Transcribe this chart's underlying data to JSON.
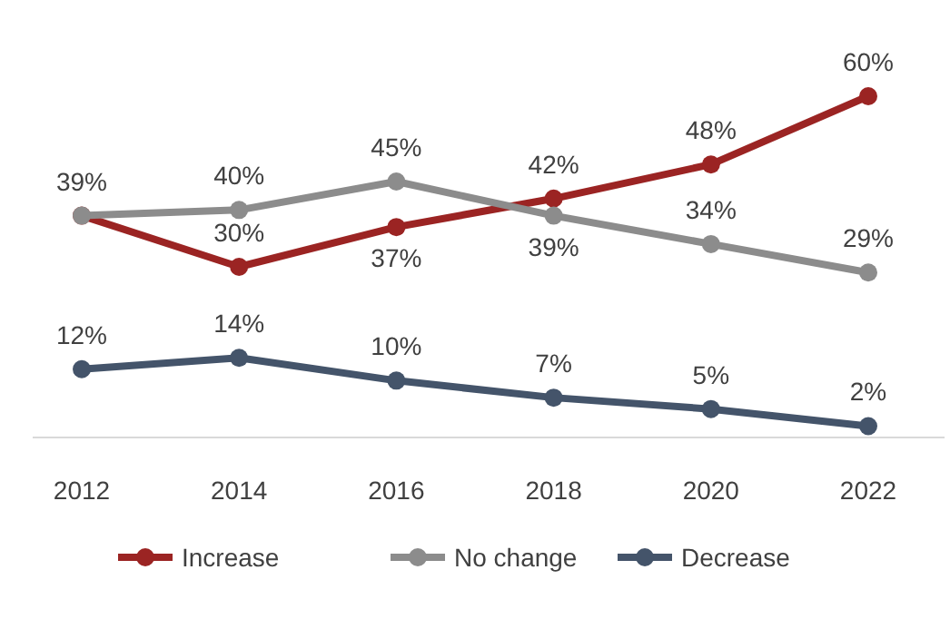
{
  "chart_data": {
    "type": "line",
    "categories": [
      "2012",
      "2014",
      "2016",
      "2018",
      "2020",
      "2022"
    ],
    "marker": "circle",
    "legend": "bottom",
    "grid": false,
    "tick_labels": "x",
    "series": [
      {
        "name": "Increase",
        "color": "#9b2423",
        "values": [
          39,
          30,
          37,
          42,
          48,
          60
        ],
        "value_labels": [
          "39%",
          "30%",
          "37%",
          "42%",
          "48%",
          "60%"
        ]
      },
      {
        "name": "No change",
        "color": "#8c8c8c",
        "values": [
          39,
          40,
          45,
          39,
          34,
          29
        ],
        "value_labels": [
          null,
          "40%",
          "45%",
          "39%",
          "34%",
          "29%"
        ]
      },
      {
        "name": "Decrease",
        "color": "#44546a",
        "values": [
          12,
          14,
          10,
          7,
          5,
          2
        ],
        "value_labels": [
          "12%",
          "14%",
          "10%",
          "7%",
          "5%",
          "2%"
        ]
      }
    ]
  }
}
